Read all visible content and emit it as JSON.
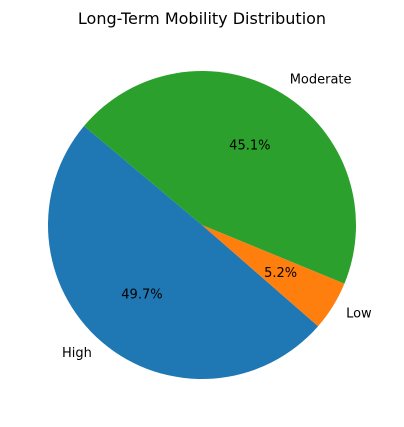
{
  "chart_data": {
    "type": "pie",
    "title": "Long-Term Mobility Distribution",
    "slices": [
      {
        "label": "High",
        "value": 49.7,
        "pct_label": "49.7%",
        "color": "#1f77b4"
      },
      {
        "label": "Low",
        "value": 5.2,
        "pct_label": "5.2%",
        "color": "#ff7f0e"
      },
      {
        "label": "Moderate",
        "value": 45.1,
        "pct_label": "45.1%",
        "color": "#2ca02c"
      }
    ],
    "start_angle_deg": 140,
    "direction": "counterclockwise",
    "legend": "none"
  }
}
